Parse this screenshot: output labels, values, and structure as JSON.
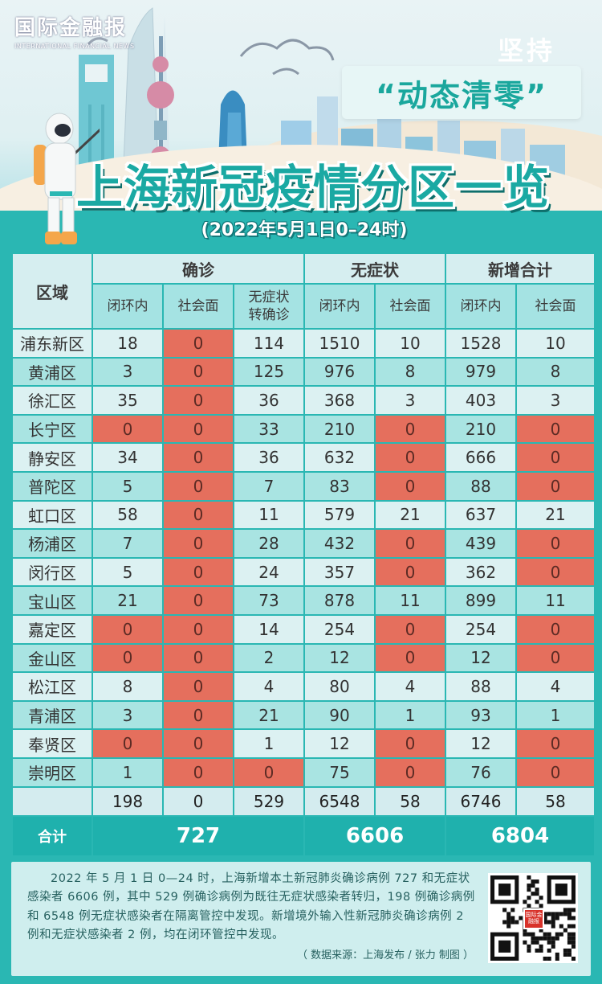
{
  "header": {
    "logo_main": "国际金融报",
    "logo_sub": "INTERNATIONAL FINANCIAL NEWS",
    "persist": "坚持",
    "slogan": "“动态清零”",
    "title": "上海新冠疫情分区一览",
    "subtitle": "(2022年5月1日0–24时)"
  },
  "table": {
    "area_header": "区域",
    "groups": [
      "确诊",
      "无症状",
      "新增合计"
    ],
    "subheaders": [
      "闭环内",
      "社会面",
      "无症状\n转确诊",
      "闭环内",
      "社会面",
      "闭环内",
      "社会面"
    ],
    "rows": [
      {
        "district": "浦东新区",
        "values": [
          "18",
          "0",
          "114",
          "1510",
          "10",
          "1528",
          "10"
        ]
      },
      {
        "district": "黄浦区",
        "values": [
          "3",
          "0",
          "125",
          "976",
          "8",
          "979",
          "8"
        ]
      },
      {
        "district": "徐汇区",
        "values": [
          "35",
          "0",
          "36",
          "368",
          "3",
          "403",
          "3"
        ]
      },
      {
        "district": "长宁区",
        "values": [
          "0",
          "0",
          "33",
          "210",
          "0",
          "210",
          "0"
        ]
      },
      {
        "district": "静安区",
        "values": [
          "34",
          "0",
          "36",
          "632",
          "0",
          "666",
          "0"
        ]
      },
      {
        "district": "普陀区",
        "values": [
          "5",
          "0",
          "7",
          "83",
          "0",
          "88",
          "0"
        ]
      },
      {
        "district": "虹口区",
        "values": [
          "58",
          "0",
          "11",
          "579",
          "21",
          "637",
          "21"
        ]
      },
      {
        "district": "杨浦区",
        "values": [
          "7",
          "0",
          "28",
          "432",
          "0",
          "439",
          "0"
        ]
      },
      {
        "district": "闵行区",
        "values": [
          "5",
          "0",
          "24",
          "357",
          "0",
          "362",
          "0"
        ]
      },
      {
        "district": "宝山区",
        "values": [
          "21",
          "0",
          "73",
          "878",
          "11",
          "899",
          "11"
        ]
      },
      {
        "district": "嘉定区",
        "values": [
          "0",
          "0",
          "14",
          "254",
          "0",
          "254",
          "0"
        ]
      },
      {
        "district": "金山区",
        "values": [
          "0",
          "0",
          "2",
          "12",
          "0",
          "12",
          "0"
        ]
      },
      {
        "district": "松江区",
        "values": [
          "8",
          "0",
          "4",
          "80",
          "4",
          "88",
          "4"
        ]
      },
      {
        "district": "青浦区",
        "values": [
          "3",
          "0",
          "21",
          "90",
          "1",
          "93",
          "1"
        ]
      },
      {
        "district": "奉贤区",
        "values": [
          "0",
          "0",
          "1",
          "12",
          "0",
          "12",
          "0"
        ]
      },
      {
        "district": "崇明区",
        "values": [
          "1",
          "0",
          "0",
          "75",
          "0",
          "76",
          "0"
        ]
      }
    ],
    "sum_row": [
      "198",
      "0",
      "529",
      "6548",
      "58",
      "6746",
      "58"
    ],
    "total_label": "合计",
    "totals": [
      "727",
      "6606",
      "6804"
    ]
  },
  "footer": {
    "text": "2022 年 5 月 1 日 0—24 时，上海新增本土新冠肺炎确诊病例 727 和无症状感染者 6606 例，其中 529 例确诊病例为既往无症状感染者转归，198 例确诊病例和 6548 例无症状感染者在隔离管控中发现。新增境外输入性新冠肺炎确诊病例 2 例和无症状感染者 2 例，均在闭环管控中发现。",
    "source": "（ 数据来源：上海发布 / 张力 制图 ）",
    "qr_label": "国际金融报"
  },
  "colors": {
    "teal": "#2ab7b3",
    "zero_highlight": "#e56f5d",
    "row_light": "#dcf1f2",
    "row_dark": "#a9e4e2"
  }
}
